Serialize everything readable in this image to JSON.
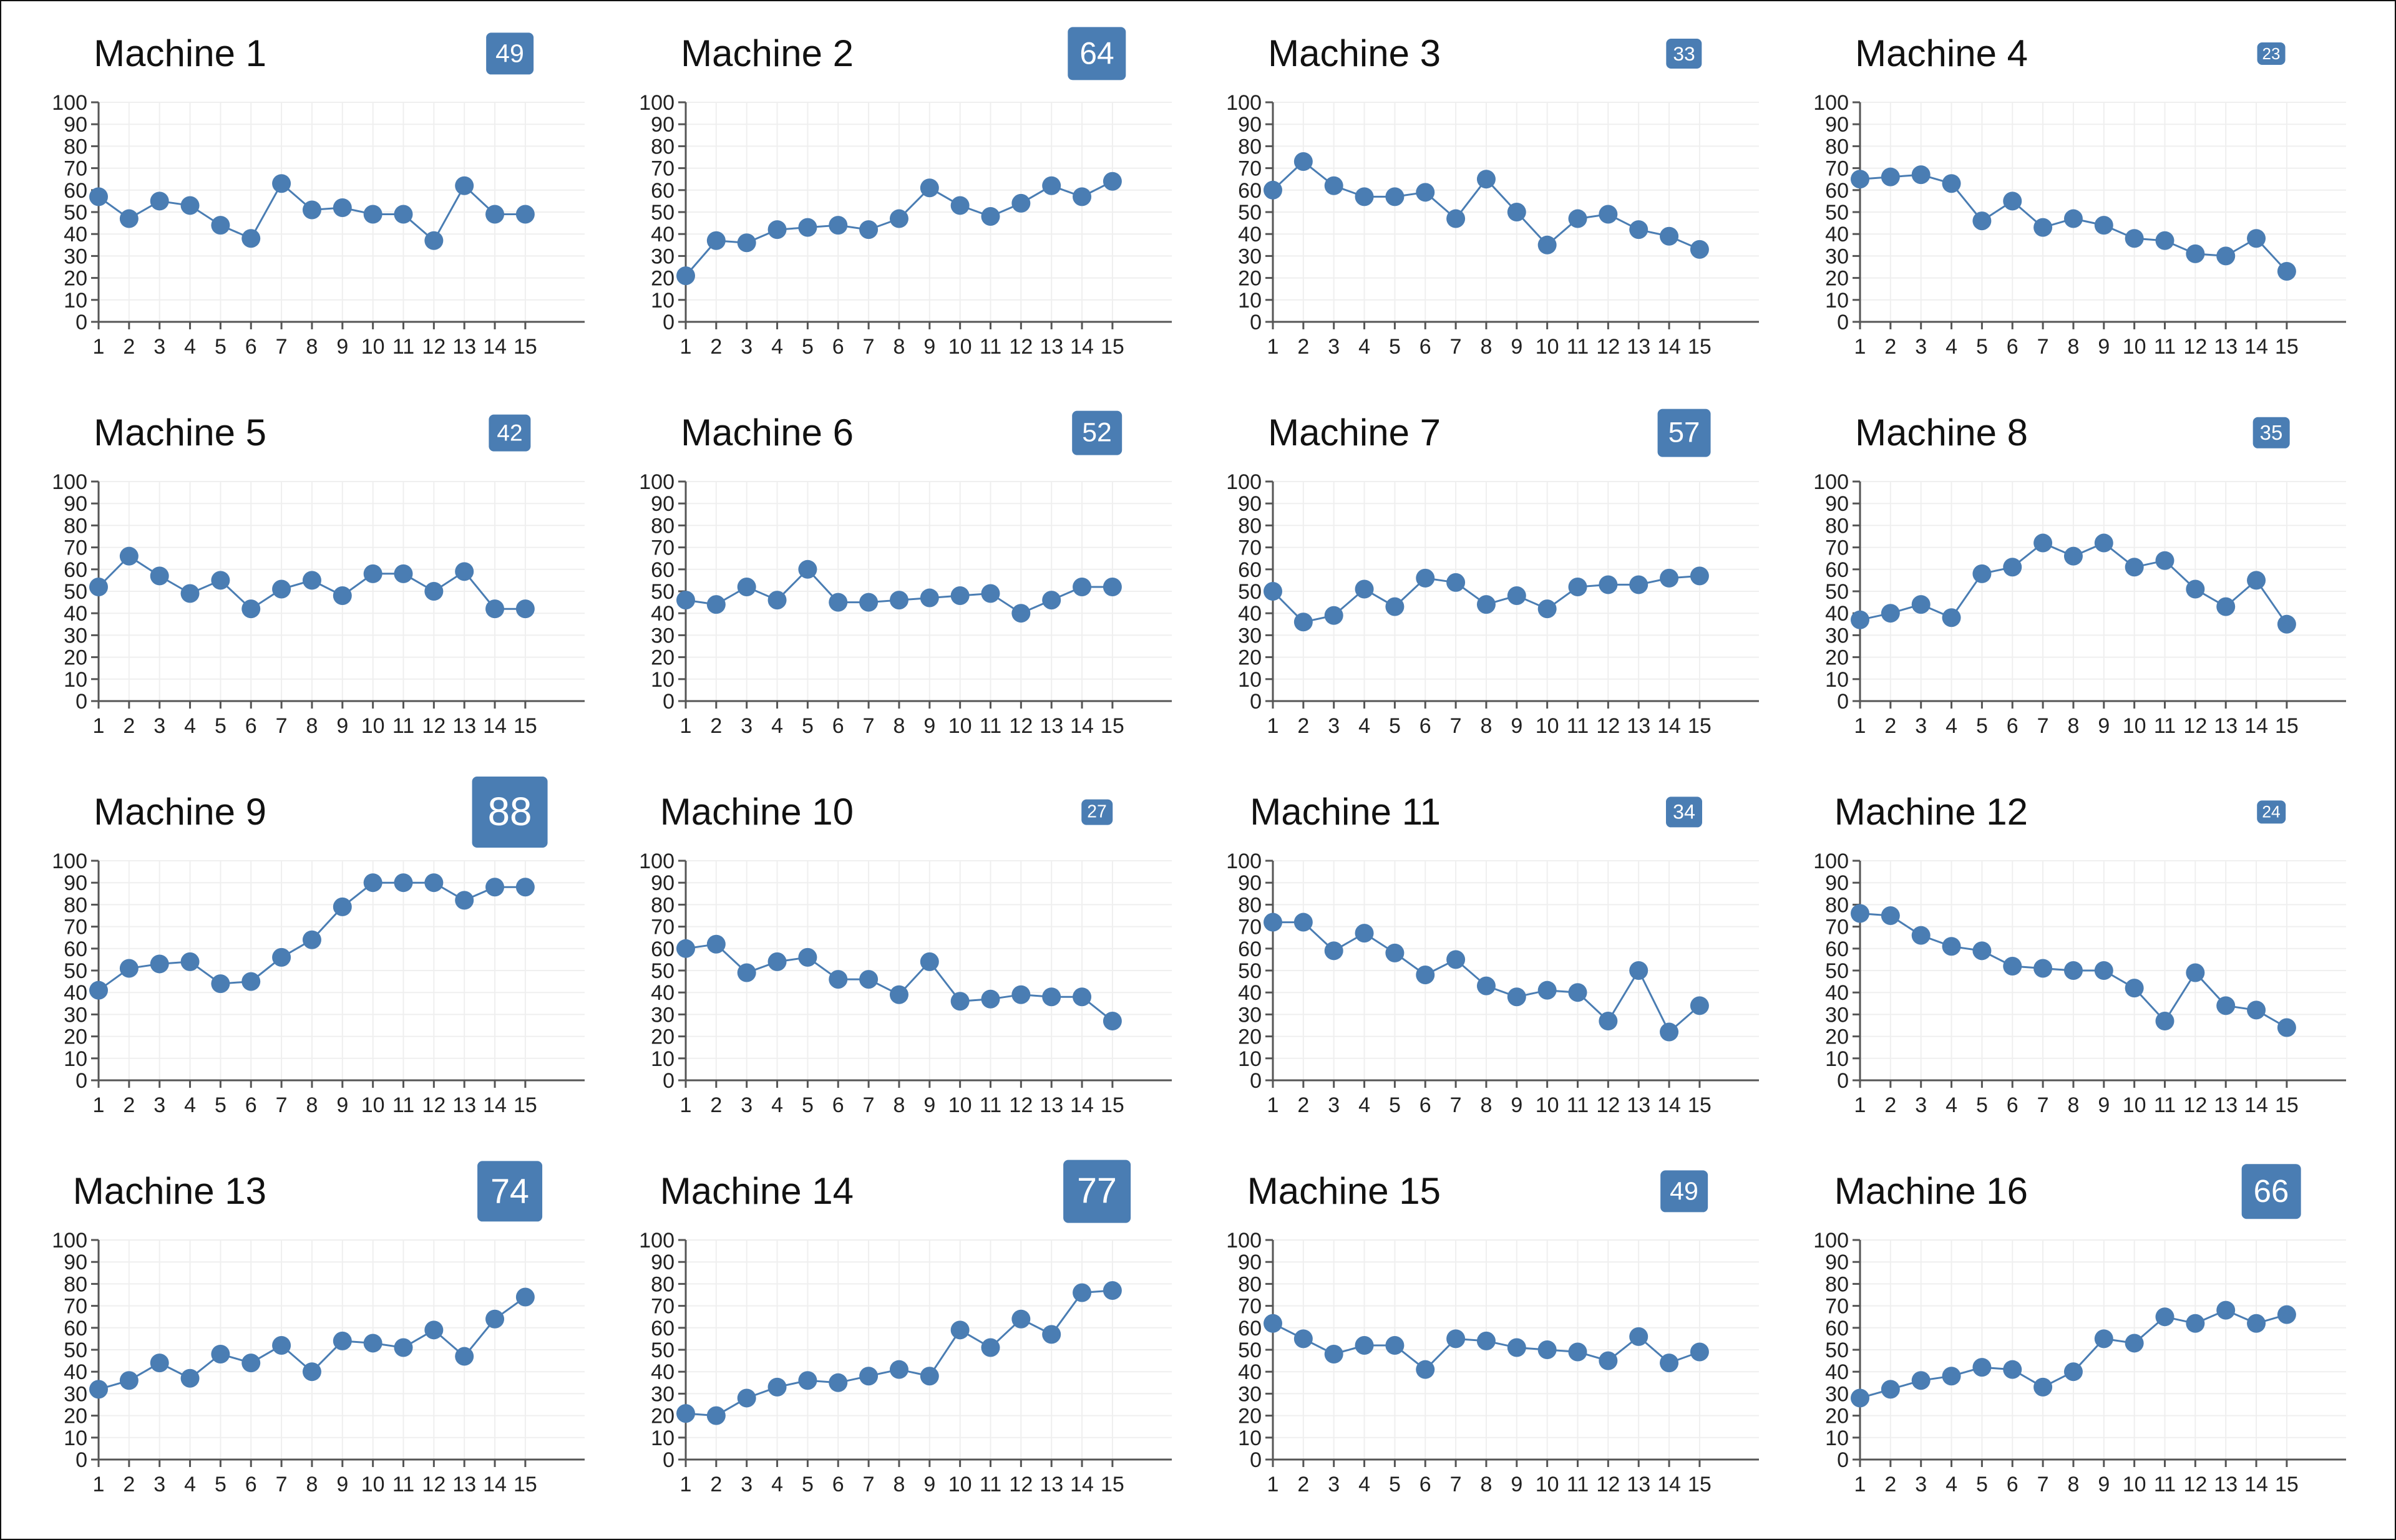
{
  "badge_color": "#4a7db3",
  "line_color": "#4a7db3",
  "chart_data": [
    {
      "type": "line",
      "title": "Machine 1",
      "value": 49,
      "x": [
        1,
        2,
        3,
        4,
        5,
        6,
        7,
        8,
        9,
        10,
        11,
        12,
        13,
        14,
        15
      ],
      "y": [
        57,
        47,
        55,
        53,
        44,
        38,
        63,
        51,
        52,
        49,
        49,
        37,
        62,
        49,
        49
      ],
      "ylim": [
        0,
        100
      ],
      "grid": true
    },
    {
      "type": "line",
      "title": "Machine 2",
      "value": 64,
      "x": [
        1,
        2,
        3,
        4,
        5,
        6,
        7,
        8,
        9,
        10,
        11,
        12,
        13,
        14,
        15
      ],
      "y": [
        21,
        37,
        36,
        42,
        43,
        44,
        42,
        47,
        61,
        53,
        48,
        54,
        62,
        57,
        64
      ],
      "ylim": [
        0,
        100
      ],
      "grid": true
    },
    {
      "type": "line",
      "title": "Machine 3",
      "value": 33,
      "x": [
        1,
        2,
        3,
        4,
        5,
        6,
        7,
        8,
        9,
        10,
        11,
        12,
        13,
        14,
        15
      ],
      "y": [
        60,
        73,
        62,
        57,
        57,
        59,
        47,
        65,
        50,
        35,
        47,
        49,
        42,
        39,
        33
      ],
      "ylim": [
        0,
        100
      ],
      "grid": true
    },
    {
      "type": "line",
      "title": "Machine 4",
      "value": 23,
      "x": [
        1,
        2,
        3,
        4,
        5,
        6,
        7,
        8,
        9,
        10,
        11,
        12,
        13,
        14,
        15
      ],
      "y": [
        65,
        66,
        67,
        63,
        46,
        55,
        43,
        47,
        44,
        38,
        37,
        31,
        30,
        38,
        23
      ],
      "ylim": [
        0,
        100
      ],
      "grid": true
    },
    {
      "type": "line",
      "title": "Machine 5",
      "value": 42,
      "x": [
        1,
        2,
        3,
        4,
        5,
        6,
        7,
        8,
        9,
        10,
        11,
        12,
        13,
        14,
        15
      ],
      "y": [
        52,
        66,
        57,
        49,
        55,
        42,
        51,
        55,
        48,
        58,
        58,
        50,
        59,
        42,
        42
      ],
      "ylim": [
        0,
        100
      ],
      "grid": true
    },
    {
      "type": "line",
      "title": "Machine 6",
      "value": 52,
      "x": [
        1,
        2,
        3,
        4,
        5,
        6,
        7,
        8,
        9,
        10,
        11,
        12,
        13,
        14,
        15
      ],
      "y": [
        46,
        44,
        52,
        46,
        60,
        45,
        45,
        46,
        47,
        48,
        49,
        40,
        46,
        52,
        52
      ],
      "ylim": [
        0,
        100
      ],
      "grid": true
    },
    {
      "type": "line",
      "title": "Machine 7",
      "value": 57,
      "x": [
        1,
        2,
        3,
        4,
        5,
        6,
        7,
        8,
        9,
        10,
        11,
        12,
        13,
        14,
        15
      ],
      "y": [
        50,
        36,
        39,
        51,
        43,
        56,
        54,
        44,
        48,
        42,
        52,
        53,
        53,
        56,
        57
      ],
      "ylim": [
        0,
        100
      ],
      "grid": true
    },
    {
      "type": "line",
      "title": "Machine 8",
      "value": 35,
      "x": [
        1,
        2,
        3,
        4,
        5,
        6,
        7,
        8,
        9,
        10,
        11,
        12,
        13,
        14,
        15
      ],
      "y": [
        37,
        40,
        44,
        38,
        58,
        61,
        72,
        66,
        72,
        61,
        64,
        51,
        43,
        55,
        35
      ],
      "ylim": [
        0,
        100
      ],
      "grid": true
    },
    {
      "type": "line",
      "title": "Machine 9",
      "value": 88,
      "x": [
        1,
        2,
        3,
        4,
        5,
        6,
        7,
        8,
        9,
        10,
        11,
        12,
        13,
        14,
        15
      ],
      "y": [
        41,
        51,
        53,
        54,
        44,
        45,
        56,
        64,
        79,
        90,
        90,
        90,
        82,
        88,
        88
      ],
      "ylim": [
        0,
        100
      ],
      "grid": true
    },
    {
      "type": "line",
      "title": "Machine 10",
      "value": 27,
      "x": [
        1,
        2,
        3,
        4,
        5,
        6,
        7,
        8,
        9,
        10,
        11,
        12,
        13,
        14,
        15
      ],
      "y": [
        60,
        62,
        49,
        54,
        56,
        46,
        46,
        39,
        54,
        36,
        37,
        39,
        38,
        38,
        27
      ],
      "ylim": [
        0,
        100
      ],
      "grid": true
    },
    {
      "type": "line",
      "title": "Machine 11",
      "value": 34,
      "x": [
        1,
        2,
        3,
        4,
        5,
        6,
        7,
        8,
        9,
        10,
        11,
        12,
        13,
        14,
        15
      ],
      "y": [
        72,
        72,
        59,
        67,
        58,
        48,
        55,
        43,
        38,
        41,
        40,
        27,
        50,
        22,
        34
      ],
      "ylim": [
        0,
        100
      ],
      "grid": true
    },
    {
      "type": "line",
      "title": "Machine 12",
      "value": 24,
      "x": [
        1,
        2,
        3,
        4,
        5,
        6,
        7,
        8,
        9,
        10,
        11,
        12,
        13,
        14,
        15
      ],
      "y": [
        76,
        75,
        66,
        61,
        59,
        52,
        51,
        50,
        50,
        42,
        27,
        49,
        34,
        32,
        24
      ],
      "ylim": [
        0,
        100
      ],
      "grid": true
    },
    {
      "type": "line",
      "title": "Machine 13",
      "value": 74,
      "x": [
        1,
        2,
        3,
        4,
        5,
        6,
        7,
        8,
        9,
        10,
        11,
        12,
        13,
        14,
        15
      ],
      "y": [
        32,
        36,
        44,
        37,
        48,
        44,
        52,
        40,
        54,
        53,
        51,
        59,
        47,
        64,
        74
      ],
      "ylim": [
        0,
        100
      ],
      "grid": true
    },
    {
      "type": "line",
      "title": "Machine 14",
      "value": 77,
      "x": [
        1,
        2,
        3,
        4,
        5,
        6,
        7,
        8,
        9,
        10,
        11,
        12,
        13,
        14,
        15
      ],
      "y": [
        21,
        20,
        28,
        33,
        36,
        35,
        38,
        41,
        38,
        59,
        51,
        64,
        57,
        76,
        77
      ],
      "ylim": [
        0,
        100
      ],
      "grid": true
    },
    {
      "type": "line",
      "title": "Machine 15",
      "value": 49,
      "x": [
        1,
        2,
        3,
        4,
        5,
        6,
        7,
        8,
        9,
        10,
        11,
        12,
        13,
        14,
        15
      ],
      "y": [
        62,
        55,
        48,
        52,
        52,
        41,
        55,
        54,
        51,
        50,
        49,
        45,
        56,
        44,
        49
      ],
      "ylim": [
        0,
        100
      ],
      "grid": true
    },
    {
      "type": "line",
      "title": "Machine 16",
      "value": 66,
      "x": [
        1,
        2,
        3,
        4,
        5,
        6,
        7,
        8,
        9,
        10,
        11,
        12,
        13,
        14,
        15
      ],
      "y": [
        28,
        32,
        36,
        38,
        42,
        41,
        33,
        40,
        55,
        53,
        65,
        62,
        68,
        62,
        66
      ],
      "ylim": [
        0,
        100
      ],
      "grid": true
    }
  ]
}
